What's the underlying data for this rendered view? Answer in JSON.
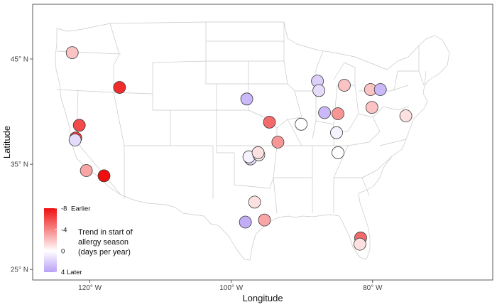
{
  "chart_data": {
    "type": "scatter",
    "title": "",
    "xlabel": "Longitude",
    "ylabel": "Latitude",
    "x_ticks": [
      {
        "value": -120,
        "label": "120° W"
      },
      {
        "value": -100,
        "label": "100° W"
      },
      {
        "value": -80,
        "label": "80° W"
      }
    ],
    "y_ticks": [
      {
        "value": 45,
        "label": "45° N"
      },
      {
        "value": 35,
        "label": "35° N"
      },
      {
        "value": 25,
        "label": "25° N"
      }
    ],
    "xlim": [
      -128.1,
      -63.0
    ],
    "ylim": [
      24.0,
      50.2
    ],
    "grid": false,
    "basemap": "USA state boundaries",
    "color_scale": {
      "min": -8,
      "max": 4,
      "low_color": "#ee0f0f",
      "mid_color": "#ffffff",
      "high_color": "#b9a0f5"
    },
    "legend": {
      "title_lines": [
        "Trend in start of",
        "allergy season",
        "(days per year)"
      ],
      "position": "bottom-left",
      "ticks": [
        {
          "value": -8,
          "label": "-8",
          "annotation": "Earlier"
        },
        {
          "value": -4,
          "label": "-4",
          "annotation": ""
        },
        {
          "value": 0,
          "label": "0",
          "annotation": ""
        },
        {
          "value": 4,
          "label": "4",
          "annotation": "Later"
        }
      ]
    },
    "points": [
      {
        "lon": -122.5,
        "lat": 45.6,
        "value": -2
      },
      {
        "lon": -115.8,
        "lat": 42.3,
        "value": -7
      },
      {
        "lon": -121.5,
        "lat": 38.7,
        "value": -6
      },
      {
        "lon": -122.0,
        "lat": 37.5,
        "value": -6.5
      },
      {
        "lon": -122.1,
        "lat": 37.3,
        "value": 1.5
      },
      {
        "lon": -120.5,
        "lat": 34.4,
        "value": -3
      },
      {
        "lon": -118.0,
        "lat": 33.9,
        "value": -8
      },
      {
        "lon": -97.8,
        "lat": 41.2,
        "value": 3
      },
      {
        "lon": -94.6,
        "lat": 39.0,
        "value": -5
      },
      {
        "lon": -93.4,
        "lat": 37.1,
        "value": -3.5
      },
      {
        "lon": -97.3,
        "lat": 35.5,
        "value": 1.5
      },
      {
        "lon": -97.5,
        "lat": 35.7,
        "value": 0.5
      },
      {
        "lon": -96.1,
        "lat": 35.9,
        "value": -0.5
      },
      {
        "lon": -96.2,
        "lat": 36.1,
        "value": -1
      },
      {
        "lon": -96.7,
        "lat": 31.4,
        "value": -1
      },
      {
        "lon": -98.0,
        "lat": 29.5,
        "value": 3.5
      },
      {
        "lon": -95.3,
        "lat": 29.7,
        "value": -3
      },
      {
        "lon": -90.1,
        "lat": 38.8,
        "value": 0
      },
      {
        "lon": -87.8,
        "lat": 42.9,
        "value": 2
      },
      {
        "lon": -87.6,
        "lat": 42.0,
        "value": 1.5
      },
      {
        "lon": -86.8,
        "lat": 39.9,
        "value": 3
      },
      {
        "lon": -84.9,
        "lat": 39.8,
        "value": -3.5
      },
      {
        "lon": -84.0,
        "lat": 42.5,
        "value": -2
      },
      {
        "lon": -85.1,
        "lat": 38.0,
        "value": 0.5
      },
      {
        "lon": -84.9,
        "lat": 36.1,
        "value": 0
      },
      {
        "lon": -80.3,
        "lat": 42.1,
        "value": -2
      },
      {
        "lon": -80.1,
        "lat": 40.4,
        "value": -2
      },
      {
        "lon": -78.9,
        "lat": 42.1,
        "value": 3
      },
      {
        "lon": -75.3,
        "lat": 39.6,
        "value": -1
      },
      {
        "lon": -81.7,
        "lat": 28.0,
        "value": -5
      },
      {
        "lon": -81.8,
        "lat": 27.4,
        "value": -1
      }
    ]
  }
}
